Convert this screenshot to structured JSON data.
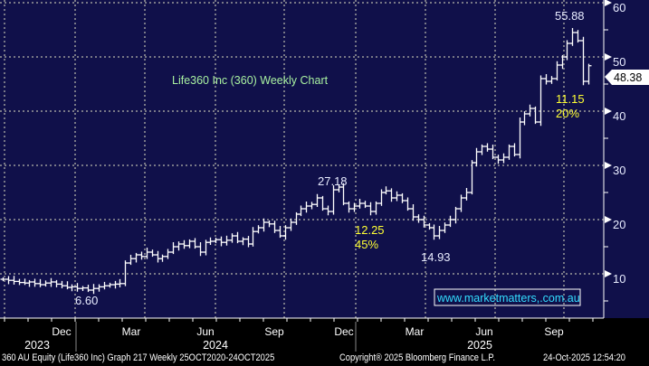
{
  "chart_data": {
    "type": "ohlc-bar",
    "title": "Life360 Inc (360) Weekly Chart",
    "frequency": "weekly",
    "y_ticks": [
      10,
      20,
      30,
      40,
      50,
      60
    ],
    "ylim": [
      1.8,
      61
    ],
    "x_month_labels": [
      "Dec",
      "Mar",
      "Jun",
      "Sep",
      "Dec",
      "Mar",
      "Jun",
      "Sep"
    ],
    "x_year_labels": [
      "2023",
      "2024",
      "2025"
    ],
    "grid": true,
    "closes": [
      9,
      8.8,
      8.6,
      8.4,
      8.3,
      8.5,
      8.2,
      8.0,
      8.3,
      8.5,
      8.1,
      7.8,
      7.5,
      7.6,
      7.3,
      7.4,
      7.0,
      7.3,
      7.6,
      7.8,
      8.0,
      8.1,
      8.2,
      12.0,
      12.8,
      13.5,
      13.2,
      14.0,
      13.5,
      12.8,
      13.2,
      14.0,
      15.0,
      15.5,
      15.2,
      16.0,
      15.0,
      14.0,
      15.8,
      16.0,
      16.3,
      15.8,
      16.2,
      17.0,
      16.0,
      16.4,
      15.5,
      17.8,
      18.5,
      19.5,
      19.2,
      18.0,
      17.0,
      18.5,
      19.5,
      21.0,
      22.0,
      22.5,
      22.8,
      24.0,
      22.0,
      21.5,
      25.5,
      26.0,
      23.0,
      22.0,
      22.5,
      23.0,
      22.5,
      21.5,
      23.0,
      25.0,
      25.3,
      24.0,
      24.5,
      23.5,
      22.0,
      20.5,
      20.0,
      19.0,
      18.5,
      17.0,
      18.0,
      19.0,
      20.0,
      22.0,
      24.0,
      25.0,
      30.5,
      32.5,
      33.5,
      33.0,
      31.5,
      31.0,
      31.5,
      33.5,
      32.0,
      38.0,
      39.5,
      40.5,
      38.0,
      46.0,
      45.5,
      46.0,
      48.5,
      50.0,
      52.5,
      54.5,
      53.0,
      45.5,
      48.38
    ],
    "last_price": "48.38",
    "annotations": {
      "low_2023": "6.60",
      "high_2024": "27.18",
      "drop_2024_value": "12.25",
      "drop_2024_pct": "45%",
      "low_2025": "14.93",
      "high_2025": "55.88",
      "drop_2025_value": "11.15",
      "drop_2025_pct": "20%"
    },
    "watermark": "www.marketmatters,.com.au"
  },
  "colors": {
    "plot_bg": "#10104a",
    "bars": "#ffffff",
    "grid": "#9a9a9a",
    "title": "#a8f0a0",
    "yellow": "#ffff33",
    "watermark": "#33ddff"
  },
  "footer": {
    "left": "360 AU Equity (Life360 Inc) Graph 217 Weekly 25OCT2020-24OCT2025",
    "copyright": "Copyright® 2025 Bloomberg Finance L.P.",
    "timestamp": "24-Oct-2025 12:54:20"
  }
}
